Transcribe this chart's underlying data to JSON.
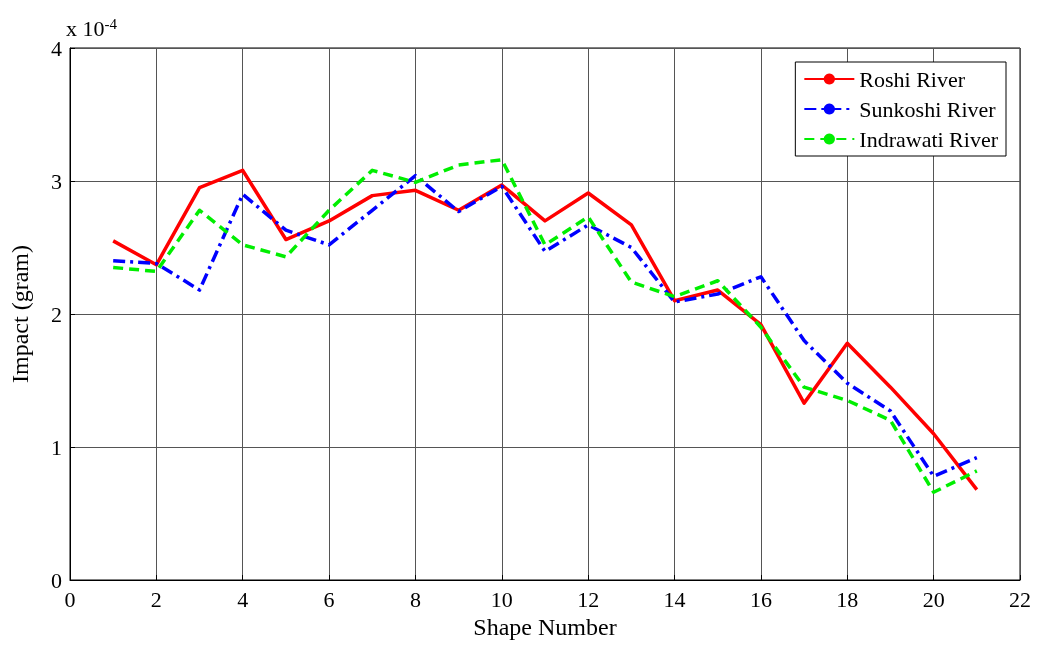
{
  "chart_data": {
    "type": "line",
    "xlabel": "Shape Number",
    "ylabel": "Impact (gram)",
    "annotations": [
      "x 10$^{-4}$"
    ],
    "x": [
      1,
      2,
      3,
      4,
      5,
      6,
      7,
      8,
      9,
      10,
      11,
      12,
      13,
      14,
      15,
      16,
      17,
      18,
      19,
      20,
      21
    ],
    "xlim": [
      0,
      22
    ],
    "xticks": [
      0,
      2,
      4,
      6,
      8,
      10,
      12,
      14,
      16,
      18,
      20,
      22
    ],
    "ylim": [
      0,
      4
    ],
    "yticks": [
      0,
      1,
      2,
      3,
      4
    ],
    "grid": true,
    "legend": "top right",
    "marker": "none",
    "series": [
      {
        "name": "Roshi River",
        "color": "#ff0000",
        "line_style": "solid",
        "values": [
          2.55,
          2.37,
          2.95,
          3.08,
          2.56,
          2.7,
          2.89,
          2.93,
          2.78,
          2.97,
          2.7,
          2.91,
          2.67,
          2.1,
          2.18,
          1.92,
          1.33,
          1.78,
          1.45,
          1.1,
          0.68
        ]
      },
      {
        "name": "Sunkoshi River",
        "color": "#0000ff",
        "line_style": "dashdot",
        "values": [
          2.4,
          2.38,
          2.18,
          2.9,
          2.63,
          2.52,
          2.78,
          3.04,
          2.77,
          2.96,
          2.47,
          2.67,
          2.5,
          2.09,
          2.15,
          2.28,
          1.8,
          1.48,
          1.27,
          0.78,
          0.92
        ]
      },
      {
        "name": "Indrawati River",
        "color": "#00ee00",
        "line_style": "dashed",
        "values": [
          2.35,
          2.32,
          2.78,
          2.52,
          2.43,
          2.78,
          3.08,
          2.99,
          3.12,
          3.16,
          2.52,
          2.73,
          2.24,
          2.13,
          2.25,
          1.9,
          1.45,
          1.35,
          1.2,
          0.66,
          0.82
        ]
      }
    ]
  }
}
